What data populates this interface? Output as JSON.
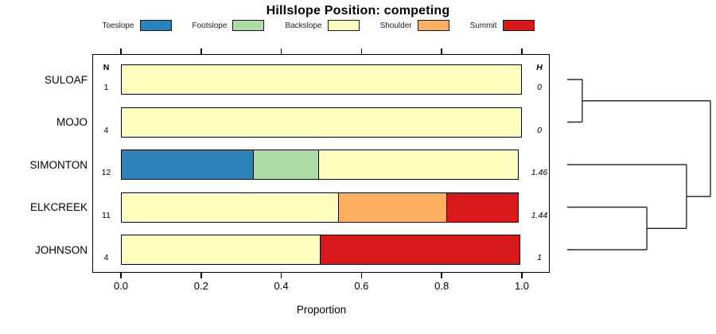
{
  "title": "Hillslope Position: competing",
  "legend": [
    {
      "label": "Toeslope",
      "color": "#2B83BA"
    },
    {
      "label": "Footslope",
      "color": "#ABDDA4"
    },
    {
      "label": "Backslope",
      "color": "#FFFFBF"
    },
    {
      "label": "Shoulder",
      "color": "#FDAE61"
    },
    {
      "label": "Summit",
      "color": "#D7191C"
    }
  ],
  "columns": {
    "n_header": "N",
    "h_header": "H"
  },
  "axis": {
    "label": "Proportion",
    "ticks": [
      "0.0",
      "0.2",
      "0.4",
      "0.6",
      "0.8",
      "1.0"
    ],
    "range": [
      0,
      1
    ]
  },
  "chart_data": {
    "type": "bar",
    "stacked": true,
    "orientation": "horizontal",
    "title": "Hillslope Position: competing",
    "xlabel": "Proportion",
    "xlim": [
      0,
      1
    ],
    "grid": false,
    "legend_position": "top",
    "categories": [
      "SULOAF",
      "MOJO",
      "SIMONTON",
      "ELKCREEK",
      "JOHNSON"
    ],
    "n_values": [
      1,
      4,
      12,
      11,
      4
    ],
    "h_values": [
      "0",
      "0",
      "1.46",
      "1.44",
      "1"
    ],
    "series": [
      {
        "name": "Toeslope",
        "color": "#2B83BA",
        "values": [
          0,
          0,
          0.333,
          0,
          0
        ]
      },
      {
        "name": "Footslope",
        "color": "#ABDDA4",
        "values": [
          0,
          0,
          0.167,
          0,
          0
        ]
      },
      {
        "name": "Backslope",
        "color": "#FFFFBF",
        "values": [
          1,
          1,
          0.5,
          0.545,
          0.5
        ]
      },
      {
        "name": "Shoulder",
        "color": "#FDAE61",
        "values": [
          0,
          0,
          0,
          0.273,
          0
        ]
      },
      {
        "name": "Summit",
        "color": "#D7191C",
        "values": [
          0,
          0,
          0,
          0.182,
          0.5
        ]
      }
    ]
  },
  "dendrogram": {
    "leaf_order": [
      "SULOAF",
      "MOJO",
      "SIMONTON",
      "ELKCREEK",
      "JOHNSON"
    ],
    "merges": [
      {
        "a": {
          "leaf": 0
        },
        "b": {
          "leaf": 1
        },
        "frac": 0.105
      },
      {
        "a": {
          "leaf": 3
        },
        "b": {
          "leaf": 4
        },
        "frac": 0.556
      },
      {
        "a": {
          "leaf": 2
        },
        "b": {
          "merge": 1
        },
        "frac": 0.833
      },
      {
        "a": {
          "merge": 0
        },
        "b": {
          "merge": 2
        },
        "frac": 1.0
      }
    ]
  }
}
